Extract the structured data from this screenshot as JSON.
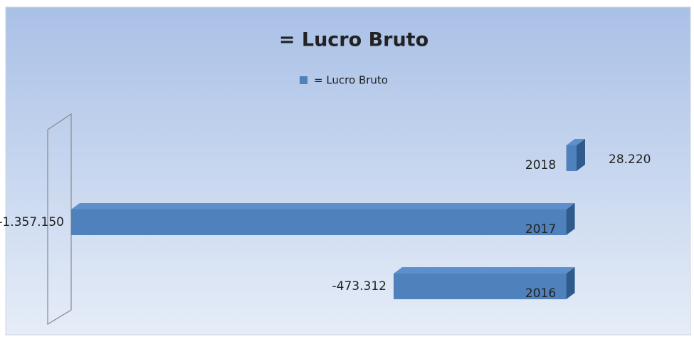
{
  "chart_data": {
    "type": "bar",
    "orientation": "horizontal",
    "title": "= Lucro Bruto",
    "categories": [
      "2018",
      "2017",
      "2016"
    ],
    "series": [
      {
        "name": "= Lucro Bruto",
        "color": "#4f81bd",
        "values": [
          28220,
          -1357150,
          -473312
        ],
        "value_labels": [
          "28.220",
          "-1.357.150",
          "-473.312"
        ]
      }
    ]
  }
}
